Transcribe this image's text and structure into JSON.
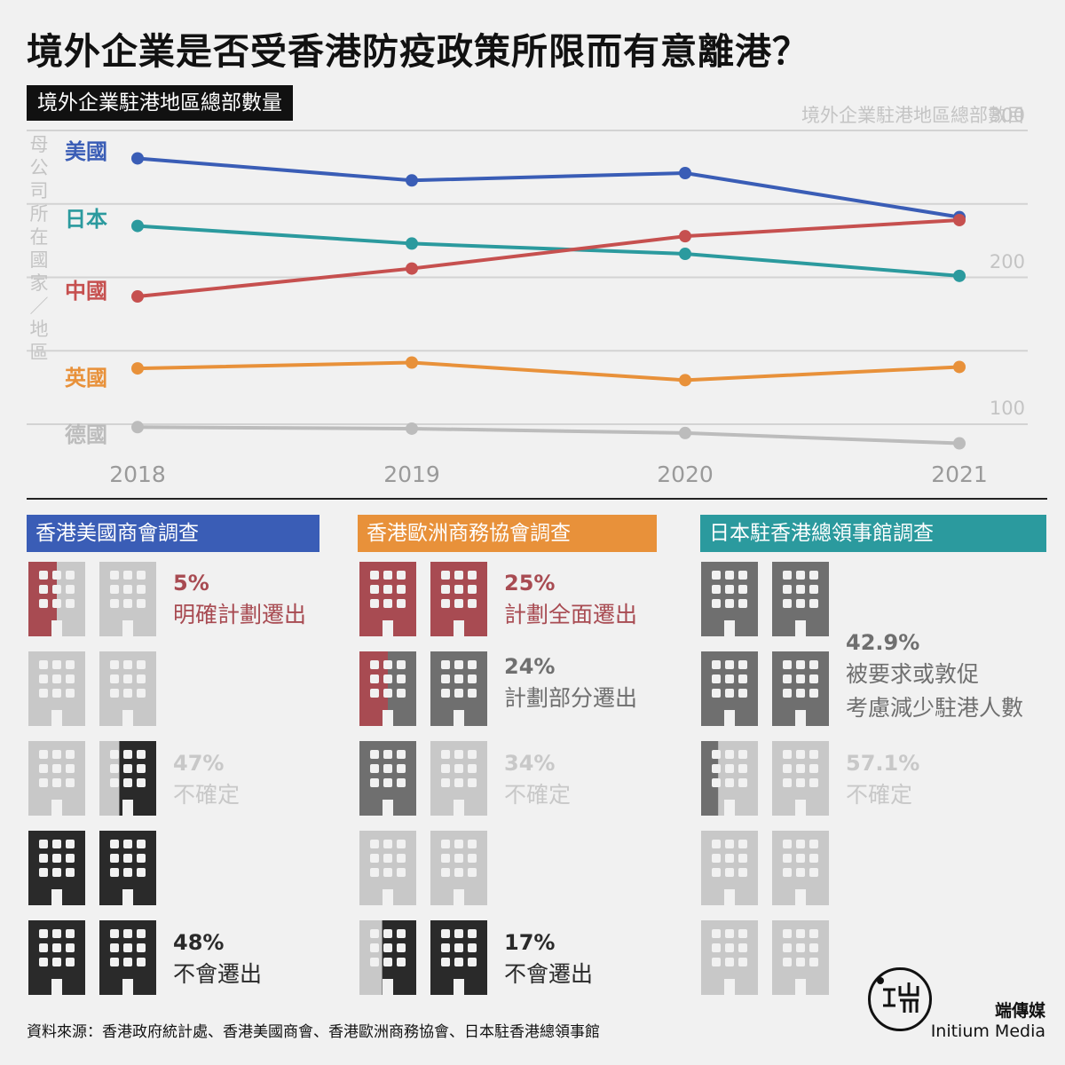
{
  "header": {
    "title": "境外企業是否受香港防疫政策所限而有意離港？",
    "subtitle": "境外企業駐港地區總部數量"
  },
  "chart_data": {
    "type": "line",
    "x": [
      "2018",
      "2019",
      "2020",
      "2021"
    ],
    "ylabel": "境外企業駐港地區總部數目",
    "y_tick_labels": [
      "100",
      "200",
      "300"
    ],
    "ylim": [
      80,
      300
    ],
    "country_axis_label": "母公司所在國家／地區",
    "series": [
      {
        "name": "美國",
        "color": "#3a5db6",
        "values": [
          281,
          266,
          271,
          241
        ]
      },
      {
        "name": "日本",
        "color": "#2b9a9e",
        "values": [
          235,
          223,
          216,
          201
        ]
      },
      {
        "name": "中國",
        "color": "#c6504f",
        "values": [
          187,
          206,
          228,
          239
        ]
      },
      {
        "name": "英國",
        "color": "#e8913a",
        "values": [
          138,
          142,
          130,
          139
        ]
      },
      {
        "name": "德國",
        "color": "#bcbcbc",
        "values": [
          98,
          97,
          94,
          87
        ]
      }
    ]
  },
  "colors": {
    "red": "#a84b52",
    "light": "#c8c8c8",
    "dark": "#2a2a2a",
    "mid": "#6f6f6f",
    "blue": "#3a5db6",
    "orange": "#e8913a",
    "teal": "#2b9a9e"
  },
  "surveys": [
    {
      "title": "香港美國商會調查",
      "color": "#3a5db6",
      "results": [
        {
          "percent": "5%",
          "label": "明確計劃遷出",
          "value": 5,
          "color": "#a84b52"
        },
        {
          "percent": "47%",
          "label": "不確定",
          "value": 47,
          "color": "#c8c8c8"
        },
        {
          "percent": "48%",
          "label": "不會遷出",
          "value": 48,
          "color": "#2a2a2a"
        }
      ],
      "buildings": [
        [
          "red",
          0.5,
          "light"
        ],
        [
          "light",
          1,
          "light"
        ],
        [
          "light",
          1,
          "light"
        ],
        [
          "light",
          1,
          "light"
        ],
        [
          "light",
          1,
          "light"
        ],
        [
          "light",
          0.35,
          "dark"
        ],
        [
          "dark",
          1,
          "dark"
        ],
        [
          "dark",
          1,
          "dark"
        ],
        [
          "dark",
          1,
          "dark"
        ],
        [
          "dark",
          1,
          "dark"
        ]
      ]
    },
    {
      "title": "香港歐洲商務協會調查",
      "color": "#e8913a",
      "results": [
        {
          "percent": "25%",
          "label": "計劃全面遷出",
          "value": 25,
          "color": "#a84b52"
        },
        {
          "percent": "24%",
          "label": "計劃部分遷出",
          "value": 24,
          "color": "#6f6f6f"
        },
        {
          "percent": "34%",
          "label": "不確定",
          "value": 34,
          "color": "#c8c8c8"
        },
        {
          "percent": "17%",
          "label": "不會遷出",
          "value": 17,
          "color": "#2a2a2a"
        }
      ],
      "buildings": [
        [
          "red",
          1,
          "red"
        ],
        [
          "red",
          1,
          "red"
        ],
        [
          "red",
          0.5,
          "mid"
        ],
        [
          "mid",
          1,
          "mid"
        ],
        [
          "mid",
          1,
          "mid"
        ],
        [
          "light",
          1,
          "light"
        ],
        [
          "light",
          1,
          "light"
        ],
        [
          "light",
          1,
          "light"
        ],
        [
          "light",
          0.4,
          "dark"
        ],
        [
          "dark",
          1,
          "dark"
        ]
      ]
    },
    {
      "title": "日本駐香港總領事館調查",
      "color": "#2b9a9e",
      "results": [
        {
          "percent": "42.9%",
          "label": "被要求或敦促",
          "label2": "考慮減少駐港人數",
          "value": 42.9,
          "color": "#6f6f6f"
        },
        {
          "percent": "57.1%",
          "label": "不確定",
          "value": 57.1,
          "color": "#c8c8c8"
        }
      ],
      "buildings": [
        [
          "mid",
          1,
          "mid"
        ],
        [
          "mid",
          1,
          "mid"
        ],
        [
          "mid",
          1,
          "mid"
        ],
        [
          "mid",
          1,
          "mid"
        ],
        [
          "mid",
          0.3,
          "light"
        ],
        [
          "light",
          1,
          "light"
        ],
        [
          "light",
          1,
          "light"
        ],
        [
          "light",
          1,
          "light"
        ],
        [
          "light",
          1,
          "light"
        ],
        [
          "light",
          1,
          "light"
        ]
      ]
    }
  ],
  "footer": {
    "source": "資料來源：香港政府統計處、香港美國商會、香港歐洲商務協會、日本駐香港總領事館",
    "brand_cn": "端傳媒",
    "brand_en": "Initium Media",
    "logo_glyph": "端"
  }
}
